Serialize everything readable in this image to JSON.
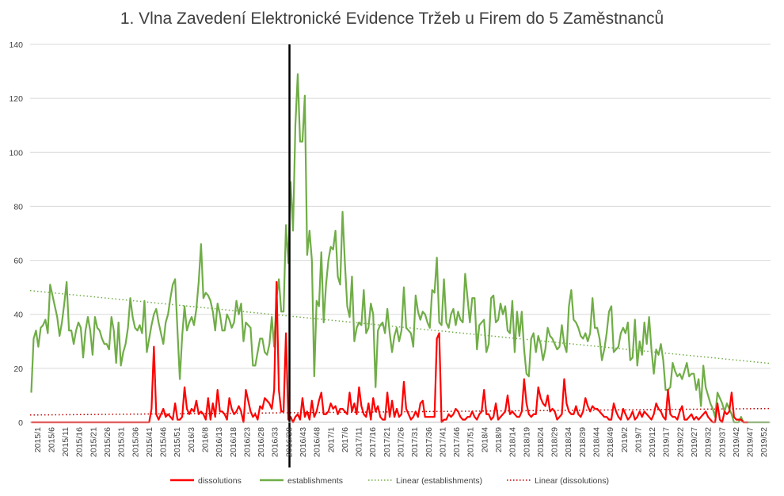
{
  "chart_data": {
    "type": "line",
    "title": "1. Vlna Zavedení Elektronické Evidence Tržeb u Firem do 5 Zaměstnanců",
    "xlabel": "",
    "ylabel": "",
    "ylim": [
      0,
      140
    ],
    "yticks": [
      0,
      20,
      40,
      60,
      80,
      100,
      120,
      140
    ],
    "grid": true,
    "legend_position": "bottom",
    "x_tick_labels": [
      "2015/1",
      "2015/6",
      "2015/11",
      "2015/16",
      "2015/21",
      "2015/26",
      "2015/31",
      "2015/36",
      "2015/41",
      "2015/46",
      "2015/51",
      "2016/3",
      "2016/8",
      "2016/13",
      "2016/18",
      "2016/23",
      "2016/28",
      "2016/33",
      "2016/38",
      "2016/43",
      "2016/48",
      "2017/1",
      "2017/6",
      "2017/11",
      "2017/16",
      "2017/21",
      "2017/26",
      "2017/31",
      "2017/36",
      "2017/41",
      "2017/46",
      "2017/51",
      "2018/4",
      "2018/9",
      "2018/14",
      "2018/19",
      "2018/24",
      "2018/29",
      "2018/34",
      "2018/39",
      "2018/44",
      "2018/49",
      "2019/2",
      "2019/7",
      "2019/12",
      "2019/17",
      "2019/22",
      "2019/27",
      "2019/32",
      "2019/37",
      "2019/42",
      "2019/47",
      "2019/52"
    ],
    "vertical_marker_after_week_index": 110,
    "series": [
      {
        "name": "dissolutions",
        "color": "#ff0000",
        "values": [
          0,
          0,
          0,
          0,
          0,
          0,
          0,
          0,
          0,
          0,
          0,
          0,
          0,
          0,
          0,
          0,
          0,
          0,
          0,
          0,
          0,
          0,
          0,
          0,
          0,
          0,
          0,
          0,
          0,
          0,
          0,
          0,
          0,
          0,
          0,
          0,
          0,
          0,
          0,
          0,
          0,
          0,
          0,
          0,
          0,
          0,
          0,
          0,
          0,
          0,
          0,
          5,
          28,
          3,
          1,
          3,
          5,
          2,
          3,
          2,
          1,
          7,
          1,
          1,
          2,
          13,
          5,
          3,
          5,
          4,
          8,
          3,
          4,
          3,
          1,
          9,
          1,
          7,
          2,
          12,
          4,
          4,
          3,
          1,
          9,
          5,
          3,
          4,
          6,
          4,
          0,
          12,
          8,
          4,
          2,
          3,
          1,
          6,
          5,
          9,
          8,
          7,
          5,
          12,
          52,
          12,
          4,
          4,
          33,
          1,
          2,
          0,
          2,
          3,
          1,
          9,
          2,
          4,
          1,
          8,
          2,
          4,
          8,
          11,
          3,
          3,
          4,
          7,
          5,
          6,
          3,
          5,
          5,
          4,
          3,
          11,
          4,
          7,
          3,
          13,
          6,
          3,
          2,
          7,
          1,
          9,
          4,
          6,
          2,
          1,
          1,
          11,
          2,
          8,
          2,
          5,
          2,
          3,
          15,
          5,
          3,
          1,
          2,
          4,
          2,
          7,
          8,
          2,
          2,
          2,
          2,
          2,
          31,
          33,
          0,
          1,
          1,
          3,
          2,
          3,
          5,
          4,
          2,
          1,
          1,
          2,
          2,
          4,
          2,
          1,
          3,
          4,
          12,
          3,
          3,
          1,
          2,
          7,
          1,
          2,
          3,
          4,
          10,
          3,
          4,
          3,
          2,
          2,
          4,
          16,
          7,
          3,
          2,
          3,
          3,
          13,
          9,
          7,
          6,
          10,
          4,
          5,
          4,
          1,
          2,
          3,
          16,
          7,
          4,
          3,
          3,
          6,
          3,
          2,
          4,
          9,
          6,
          4,
          6,
          5,
          5,
          4,
          3,
          2,
          2,
          1,
          1,
          7,
          4,
          2,
          1,
          5,
          3,
          1,
          2,
          4,
          1,
          2,
          4,
          2,
          4,
          3,
          2,
          1,
          3,
          7,
          5,
          4,
          2,
          1,
          12,
          3,
          2,
          2,
          1,
          4,
          6,
          1,
          1,
          2,
          3,
          1,
          2,
          1,
          2,
          3,
          4,
          2,
          1,
          0,
          0,
          7,
          1,
          0,
          4,
          3,
          4,
          11,
          2,
          1,
          1,
          1,
          0,
          0,
          0
        ]
      },
      {
        "name": "establishments",
        "color": "#70ad47",
        "values": [
          11,
          31,
          34,
          28,
          35,
          36,
          38,
          33,
          51,
          47,
          43,
          39,
          32,
          37,
          44,
          52,
          34,
          34,
          29,
          34,
          37,
          35,
          24,
          34,
          39,
          34,
          25,
          39,
          35,
          34,
          31,
          29,
          29,
          27,
          39,
          34,
          22,
          37,
          21,
          26,
          29,
          35,
          46,
          39,
          35,
          34,
          36,
          33,
          45,
          26,
          31,
          36,
          40,
          42,
          37,
          33,
          29,
          37,
          40,
          46,
          51,
          53,
          34,
          16,
          32,
          43,
          34,
          37,
          39,
          36,
          42,
          52,
          66,
          46,
          48,
          47,
          45,
          41,
          34,
          44,
          40,
          34,
          34,
          40,
          38,
          35,
          37,
          45,
          40,
          44,
          30,
          37,
          36,
          35,
          21,
          21,
          26,
          31,
          31,
          26,
          25,
          29,
          39,
          28,
          46,
          53,
          41,
          41,
          73,
          59,
          89,
          71,
          110,
          129,
          104,
          104,
          121,
          62,
          71,
          60,
          17,
          45,
          43,
          63,
          37,
          51,
          60,
          65,
          64,
          71,
          54,
          51,
          78,
          59,
          43,
          39,
          54,
          30,
          35,
          37,
          36,
          49,
          33,
          35,
          44,
          40,
          13,
          34,
          36,
          37,
          33,
          42,
          33,
          26,
          32,
          35,
          30,
          34,
          50,
          35,
          34,
          33,
          28,
          47,
          41,
          38,
          41,
          40,
          37,
          35,
          49,
          48,
          61,
          37,
          36,
          53,
          37,
          35,
          40,
          42,
          36,
          41,
          38,
          37,
          55,
          46,
          37,
          46,
          46,
          27,
          36,
          37,
          38,
          26,
          29,
          46,
          47,
          37,
          38,
          44,
          40,
          43,
          34,
          33,
          45,
          26,
          41,
          32,
          41,
          27,
          18,
          17,
          31,
          33,
          26,
          32,
          29,
          23,
          27,
          35,
          32,
          31,
          29,
          27,
          28,
          36,
          29,
          26,
          43,
          49,
          38,
          37,
          35,
          32,
          31,
          33,
          30,
          33,
          46,
          35,
          35,
          31,
          23,
          27,
          33,
          41,
          43,
          26,
          27,
          28,
          33,
          35,
          33,
          37,
          23,
          24,
          38,
          21,
          30,
          25,
          37,
          29,
          39,
          27,
          18,
          27,
          25,
          29,
          23,
          12,
          12,
          13,
          22,
          19,
          17,
          18,
          16,
          19,
          22,
          17,
          18,
          18,
          12,
          16,
          6,
          21,
          13,
          10,
          7,
          5,
          2,
          11,
          9,
          7,
          4,
          7,
          5,
          3,
          0,
          0,
          0,
          2,
          0,
          0,
          0,
          0,
          0,
          0,
          0,
          0,
          0,
          0,
          0,
          0
        ]
      },
      {
        "name": "Linear (establishments)",
        "color": "#70ad47",
        "style": "dotted",
        "trend_from": 48.8,
        "trend_to": 21.8
      },
      {
        "name": "Linear (dissolutions)",
        "color": "#c00000",
        "style": "dotted",
        "trend_from": 2.7,
        "trend_to": 5.1
      }
    ]
  }
}
